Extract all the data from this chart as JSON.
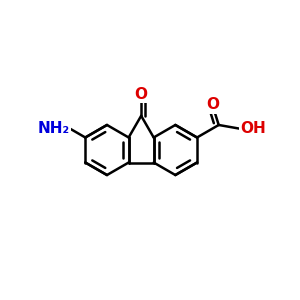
{
  "bg_color": "#ffffff",
  "bond_color": "#000000",
  "bond_width": 1.8,
  "atom_NH2": {
    "label": "NH₂",
    "color": "#0000dd",
    "fontsize": 11,
    "fontweight": "bold"
  },
  "atom_O_ketone": {
    "label": "O",
    "color": "#dd0000",
    "fontsize": 11,
    "fontweight": "bold"
  },
  "atom_O_acid": {
    "label": "O",
    "color": "#dd0000",
    "fontsize": 11,
    "fontweight": "bold"
  },
  "atom_OH_acid": {
    "label": "OH",
    "color": "#dd0000",
    "fontsize": 11,
    "fontweight": "bold"
  },
  "figsize": [
    3.0,
    3.0
  ],
  "dpi": 100,
  "xlim": [
    0.0,
    1.0
  ],
  "ylim": [
    0.0,
    1.0
  ]
}
